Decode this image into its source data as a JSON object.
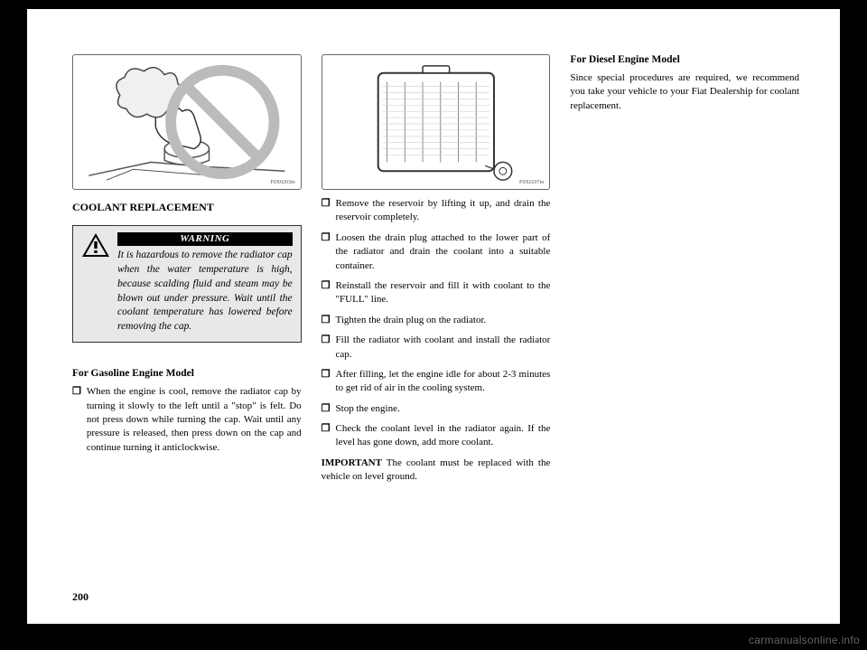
{
  "page": {
    "number": "200",
    "watermark": "carmanualsonline.info"
  },
  "col1": {
    "illus_code": "F0X0203m",
    "section_title": "COOLANT REPLACEMENT",
    "warning": {
      "label": "WARNING",
      "text": "It is hazardous to remove the radiator cap when the water temperature is high, because scalding fluid and steam may be blown out under pressure. Wait until the coolant temperature has lowered before removing the cap."
    },
    "subhead": "For Gasoline Engine Model",
    "bullet1": "When the engine is cool, remove the radiator cap by turning it slowly to the left until a \"stop\" is felt. Do not press down while turning the cap. Wait until any pressure is released, then press down on the cap and continue turning it anticlockwise."
  },
  "col2": {
    "illus_code": "F0X0207m",
    "bullets": [
      "Remove the reservoir by lifting it up, and drain the reservoir completely.",
      "Loosen the drain plug attached to the lower part of the radiator and drain the coolant into a suitable container.",
      "Reinstall the reservoir and fill it with coolant to the \"FULL\" line.",
      "Tighten the drain plug on the radiator.",
      "Fill the radiator with coolant and install the radiator cap.",
      "After filling, let the engine idle for about 2-3 minutes to get rid of air in the cooling system.",
      "Stop the engine.",
      "Check the coolant level in the radiator again. If the level has gone down, add more coolant."
    ],
    "important": "IMPORTANT The coolant must be replaced with the vehicle on level ground."
  },
  "col3": {
    "subhead": "For Diesel Engine Model",
    "para": "Since special procedures are required, we recommend you take your vehicle to your Fiat Dealership for coolant replacement."
  },
  "styling": {
    "bg": "#000000",
    "page_bg": "#ffffff",
    "warning_bg": "#e8e8e8",
    "warning_label_bg": "#000000",
    "warning_label_fg": "#ffffff",
    "text_color": "#000000",
    "body_fontsize": 11,
    "title_fontsize": 12,
    "warning_text_fontsize": 11.5
  }
}
